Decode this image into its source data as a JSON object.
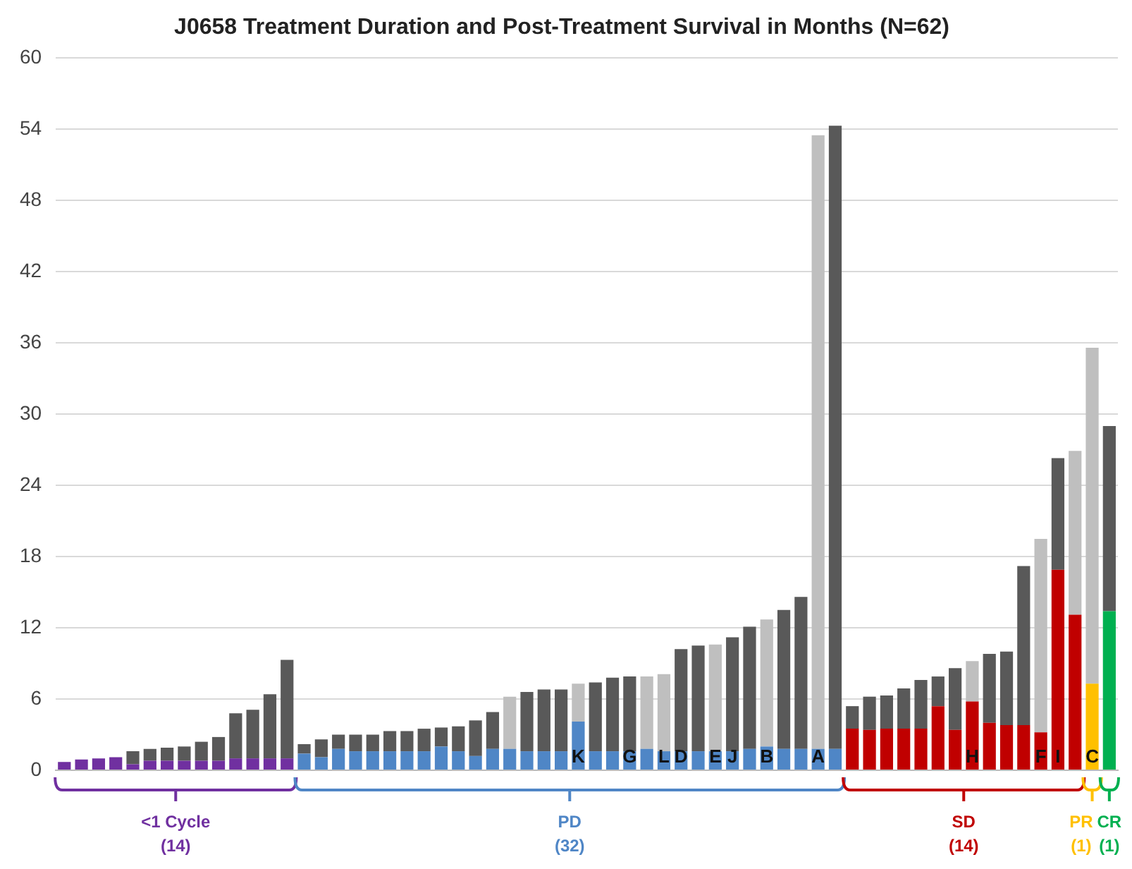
{
  "chart_data": {
    "type": "bar",
    "title": "J0658 Treatment Duration and Post-Treatment Survival in Months (N=62)",
    "categories": [
      null,
      null,
      null,
      null,
      null,
      null,
      null,
      null,
      null,
      null,
      null,
      null,
      null,
      null,
      null,
      null,
      null,
      null,
      null,
      null,
      null,
      null,
      null,
      null,
      null,
      null,
      null,
      null,
      null,
      null,
      null,
      null,
      null,
      null,
      null,
      null,
      null,
      null,
      null,
      null,
      null,
      null,
      null,
      null,
      null,
      null,
      null,
      null,
      null,
      null,
      null,
      null,
      null,
      null,
      null,
      null,
      null,
      null,
      null,
      null,
      null,
      null
    ],
    "stacked": true,
    "ylim": [
      0,
      60
    ],
    "yticks": [
      0,
      6,
      12,
      18,
      24,
      30,
      36,
      42,
      48,
      54,
      60
    ],
    "grid": "y",
    "legend": "bottom",
    "tick_labels": "y",
    "series": [
      {
        "name": "<1 Cycle (14)",
        "color": "#7030a0",
        "values": [
          0.7,
          0.9,
          1.0,
          1.1,
          0.5,
          0.8,
          0.8,
          0.8,
          0.8,
          0.8,
          1.0,
          1.0,
          1.0,
          1.0,
          null,
          null,
          null,
          null,
          null,
          null,
          null,
          null,
          null,
          null,
          null,
          null,
          null,
          null,
          null,
          null,
          null,
          null,
          null,
          null,
          null,
          null,
          null,
          null,
          null,
          null,
          null,
          null,
          null,
          null,
          null,
          null,
          null,
          null,
          null,
          null,
          null,
          null,
          null,
          null,
          null,
          null,
          null,
          null,
          null,
          null,
          null,
          null
        ]
      },
      {
        "name": "PD (32)",
        "color": "#4f86c6",
        "values": [
          null,
          null,
          null,
          null,
          null,
          null,
          null,
          null,
          null,
          null,
          null,
          null,
          null,
          null,
          1.4,
          1.1,
          1.8,
          1.6,
          1.6,
          1.6,
          1.6,
          1.6,
          2.0,
          1.6,
          1.2,
          1.8,
          1.8,
          1.6,
          1.6,
          1.6,
          4.1,
          1.6,
          1.6,
          1.6,
          1.8,
          1.6,
          1.6,
          1.6,
          1.6,
          1.6,
          1.8,
          2.0,
          1.8,
          1.8,
          1.8,
          1.8,
          null,
          null,
          null,
          null,
          null,
          null,
          null,
          null,
          null,
          null,
          null,
          null,
          null,
          null,
          null,
          null
        ],
        "value_labels": [
          null,
          null,
          null,
          null,
          null,
          null,
          null,
          null,
          null,
          null,
          null,
          null,
          null,
          null,
          null,
          null,
          null,
          null,
          null,
          null,
          null,
          null,
          null,
          null,
          null,
          null,
          null,
          null,
          null,
          null,
          "K",
          null,
          null,
          "G",
          null,
          "L",
          "D",
          null,
          "E",
          "J",
          null,
          "B",
          null,
          null,
          "A",
          null,
          null,
          null,
          null,
          null,
          null,
          null,
          null,
          null,
          null,
          null,
          null,
          null,
          null,
          null,
          null,
          null
        ]
      },
      {
        "name": "SD (14)",
        "color": "#c00000",
        "values": [
          null,
          null,
          null,
          null,
          null,
          null,
          null,
          null,
          null,
          null,
          null,
          null,
          null,
          null,
          null,
          null,
          null,
          null,
          null,
          null,
          null,
          null,
          null,
          null,
          null,
          null,
          null,
          null,
          null,
          null,
          null,
          null,
          null,
          null,
          null,
          null,
          null,
          null,
          null,
          null,
          null,
          null,
          null,
          null,
          null,
          null,
          3.5,
          3.4,
          3.5,
          3.5,
          3.5,
          5.4,
          3.4,
          5.8,
          4.0,
          3.8,
          3.8,
          3.2,
          16.9,
          13.1,
          null,
          null
        ],
        "value_labels": [
          null,
          null,
          null,
          null,
          null,
          null,
          null,
          null,
          null,
          null,
          null,
          null,
          null,
          null,
          null,
          null,
          null,
          null,
          null,
          null,
          null,
          null,
          null,
          null,
          null,
          null,
          null,
          null,
          null,
          null,
          null,
          null,
          null,
          null,
          null,
          null,
          null,
          null,
          null,
          null,
          null,
          null,
          null,
          null,
          null,
          null,
          null,
          null,
          null,
          null,
          null,
          null,
          null,
          "H",
          null,
          null,
          null,
          "F",
          "I",
          null,
          null,
          null
        ]
      },
      {
        "name": "PR (1)",
        "color": "#ffc000",
        "values": [
          null,
          null,
          null,
          null,
          null,
          null,
          null,
          null,
          null,
          null,
          null,
          null,
          null,
          null,
          null,
          null,
          null,
          null,
          null,
          null,
          null,
          null,
          null,
          null,
          null,
          null,
          null,
          null,
          null,
          null,
          null,
          null,
          null,
          null,
          null,
          null,
          null,
          null,
          null,
          null,
          null,
          null,
          null,
          null,
          null,
          null,
          null,
          null,
          null,
          null,
          null,
          null,
          null,
          null,
          null,
          null,
          null,
          null,
          null,
          null,
          7.3,
          null
        ],
        "value_labels": [
          null,
          null,
          null,
          null,
          null,
          null,
          null,
          null,
          null,
          null,
          null,
          null,
          null,
          null,
          null,
          null,
          null,
          null,
          null,
          null,
          null,
          null,
          null,
          null,
          null,
          null,
          null,
          null,
          null,
          null,
          null,
          null,
          null,
          null,
          null,
          null,
          null,
          null,
          null,
          null,
          null,
          null,
          null,
          null,
          null,
          null,
          null,
          null,
          null,
          null,
          null,
          null,
          null,
          null,
          null,
          null,
          null,
          null,
          null,
          null,
          "C",
          null
        ]
      },
      {
        "name": "CR (1)",
        "color": "#00b050",
        "values": [
          null,
          null,
          null,
          null,
          null,
          null,
          null,
          null,
          null,
          null,
          null,
          null,
          null,
          null,
          null,
          null,
          null,
          null,
          null,
          null,
          null,
          null,
          null,
          null,
          null,
          null,
          null,
          null,
          null,
          null,
          null,
          null,
          null,
          null,
          null,
          null,
          null,
          null,
          null,
          null,
          null,
          null,
          null,
          null,
          null,
          null,
          null,
          null,
          null,
          null,
          null,
          null,
          null,
          null,
          null,
          null,
          null,
          null,
          null,
          null,
          null,
          13.4
        ]
      },
      {
        "colors": [
          "#595959",
          "#595959",
          "#595959",
          "#595959",
          "#595959",
          "#595959",
          "#595959",
          "#595959",
          "#595959",
          "#595959",
          "#595959",
          "#595959",
          "#595959",
          "#595959",
          "#595959",
          "#595959",
          "#595959",
          "#595959",
          "#595959",
          "#595959",
          "#595959",
          "#595959",
          "#595959",
          "#595959",
          "#595959",
          "#595959",
          "#bfbfbf",
          "#595959",
          "#595959",
          "#595959",
          "#bfbfbf",
          "#595959",
          "#595959",
          "#595959",
          "#bfbfbf",
          "#bfbfbf",
          "#595959",
          "#595959",
          "#bfbfbf",
          "#595959",
          "#595959",
          "#bfbfbf",
          "#595959",
          "#595959",
          "#bfbfbf",
          "#595959",
          "#595959",
          "#595959",
          "#595959",
          "#595959",
          "#595959",
          "#595959",
          "#595959",
          "#bfbfbf",
          "#595959",
          "#595959",
          "#595959",
          "#bfbfbf",
          "#595959",
          "#bfbfbf",
          "#bfbfbf",
          "#595959"
        ],
        "values": [
          null,
          null,
          null,
          null,
          1.1,
          1.0,
          1.1,
          1.2,
          1.6,
          2.0,
          3.8,
          4.1,
          5.4,
          8.3,
          0.8,
          1.5,
          1.2,
          1.4,
          1.4,
          1.7,
          1.7,
          1.9,
          1.6,
          2.1,
          3.0,
          3.1,
          4.4,
          5.0,
          5.2,
          5.2,
          3.2,
          5.8,
          6.2,
          6.3,
          6.1,
          6.5,
          8.6,
          8.9,
          9.0,
          9.6,
          10.3,
          10.7,
          11.7,
          12.8,
          51.7,
          52.5,
          1.9,
          2.8,
          2.8,
          3.4,
          4.1,
          2.5,
          5.2,
          3.4,
          5.8,
          6.2,
          13.4,
          16.3,
          9.4,
          13.8,
          28.3,
          15.6
        ]
      }
    ]
  }
}
